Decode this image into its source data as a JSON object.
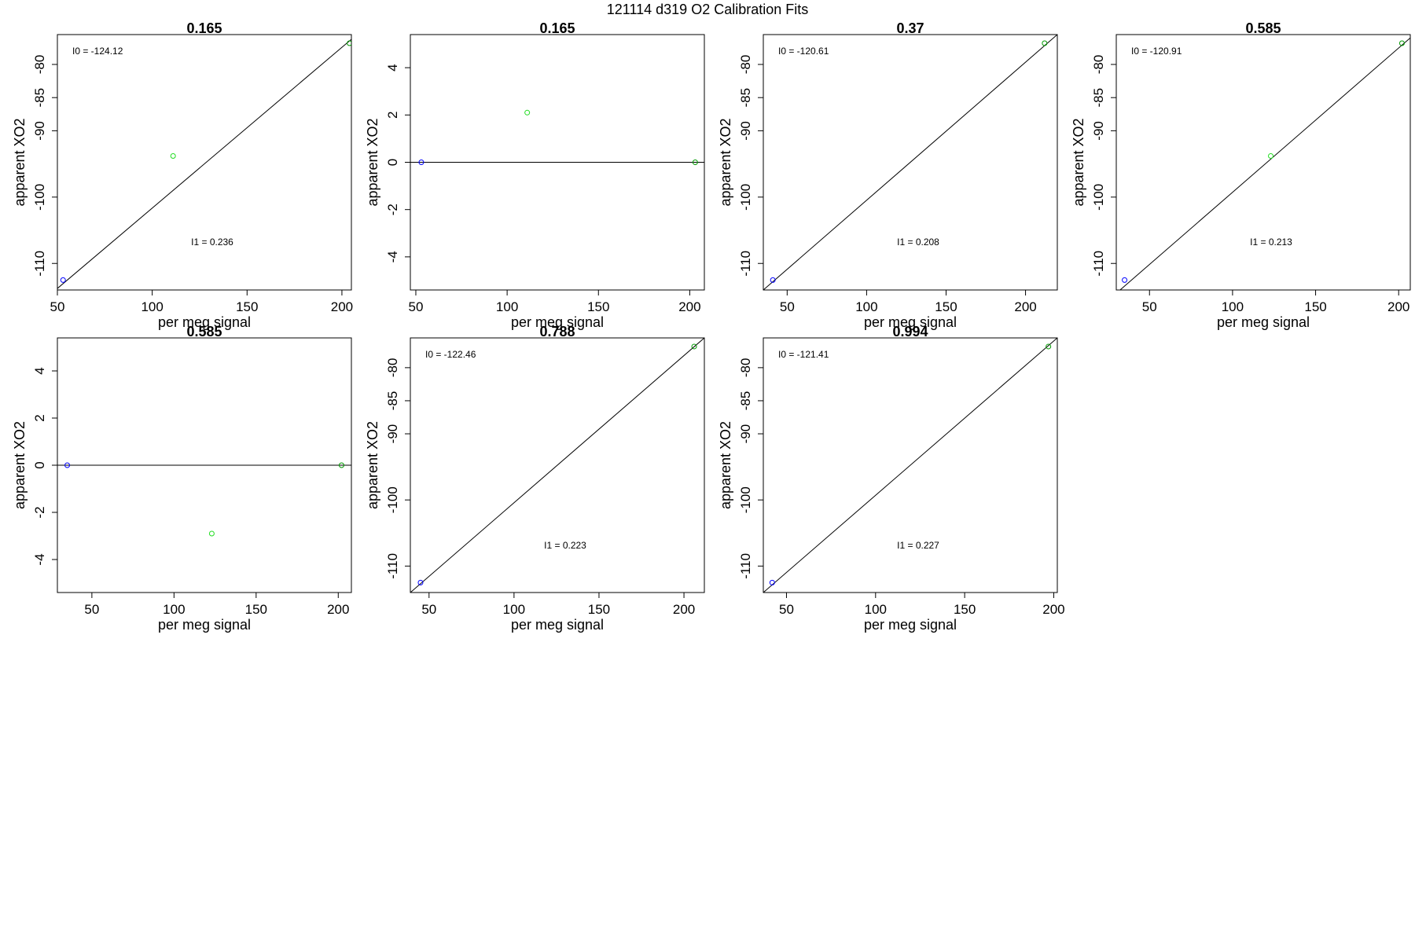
{
  "figure_title": "121114   d319   O2 Calibration Fits",
  "chart_data": [
    {
      "type": "scatter",
      "title": "0.165",
      "xlabel": "per meg signal",
      "ylabel": "apparent XO2",
      "xlim": [
        50,
        205
      ],
      "ylim": [
        -114,
        -75.5
      ],
      "xticks": [
        50,
        100,
        150,
        200
      ],
      "yticks": [
        -110,
        -100,
        -90,
        -85,
        -80
      ],
      "points": [
        {
          "x": 53,
          "y": -112.5,
          "color": "#0000ff"
        },
        {
          "x": 111,
          "y": -93.8,
          "color": "#22dd22"
        },
        {
          "x": 204,
          "y": -76.8,
          "color": "#009900"
        }
      ],
      "fit_line": [
        [
          47,
          -114.5
        ],
        [
          210,
          -75
        ]
      ],
      "annotations": {
        "i0": "I0 =  -124.12",
        "i1": "I1 =  0.236"
      }
    },
    {
      "type": "scatter",
      "title": "0.165",
      "xlabel": "per meg signal",
      "ylabel": "apparent XO2",
      "xlim": [
        47,
        208
      ],
      "ylim": [
        -5.4,
        5.4
      ],
      "xticks": [
        50,
        100,
        150,
        200
      ],
      "yticks": [
        -4,
        -2,
        0,
        2,
        4
      ],
      "points": [
        {
          "x": 53,
          "y": 0,
          "color": "#0000ff"
        },
        {
          "x": 111,
          "y": 2.1,
          "color": "#22dd22"
        },
        {
          "x": 203,
          "y": 0,
          "color": "#009900"
        }
      ],
      "fit_line": [
        [
          47,
          0
        ],
        [
          208,
          0
        ]
      ],
      "annotations": {
        "i0": "",
        "i1": ""
      }
    },
    {
      "type": "scatter",
      "title": "0.37",
      "xlabel": "per meg signal",
      "ylabel": "apparent XO2",
      "xlim": [
        35,
        220
      ],
      "ylim": [
        -114,
        -75.5
      ],
      "xticks": [
        50,
        100,
        150,
        200
      ],
      "yticks": [
        -110,
        -100,
        -90,
        -85,
        -80
      ],
      "points": [
        {
          "x": 41,
          "y": -112.5,
          "color": "#0000ff"
        },
        {
          "x": 212,
          "y": -76.8,
          "color": "#009900"
        }
      ],
      "fit_line": [
        [
          35,
          -114
        ],
        [
          220,
          -75.5
        ]
      ],
      "annotations": {
        "i0": "I0 =  -120.61",
        "i1": "I1 =  0.208"
      }
    },
    {
      "type": "scatter",
      "title": "0.585",
      "xlabel": "per meg signal",
      "ylabel": "apparent XO2",
      "xlim": [
        30,
        207
      ],
      "ylim": [
        -114,
        -75.5
      ],
      "xticks": [
        50,
        100,
        150,
        200
      ],
      "yticks": [
        -110,
        -100,
        -90,
        -85,
        -80
      ],
      "points": [
        {
          "x": 35,
          "y": -112.5,
          "color": "#0000ff"
        },
        {
          "x": 123,
          "y": -93.8,
          "color": "#22dd22"
        },
        {
          "x": 202,
          "y": -76.8,
          "color": "#009900"
        }
      ],
      "fit_line": [
        [
          30,
          -114.5
        ],
        [
          207,
          -76
        ]
      ],
      "annotations": {
        "i0": "I0 =  -120.91",
        "i1": "I1 =  0.213"
      }
    },
    {
      "type": "scatter",
      "title": "0.585",
      "xlabel": "per meg signal",
      "ylabel": "apparent XO2",
      "xlim": [
        29,
        208
      ],
      "ylim": [
        -5.4,
        5.4
      ],
      "xticks": [
        50,
        100,
        150,
        200
      ],
      "yticks": [
        -4,
        -2,
        0,
        2,
        4
      ],
      "points": [
        {
          "x": 35,
          "y": 0,
          "color": "#0000ff"
        },
        {
          "x": 123,
          "y": -2.9,
          "color": "#22dd22"
        },
        {
          "x": 202,
          "y": 0,
          "color": "#009900"
        }
      ],
      "fit_line": [
        [
          29,
          0
        ],
        [
          208,
          0
        ]
      ],
      "annotations": {
        "i0": "",
        "i1": ""
      }
    },
    {
      "type": "scatter",
      "title": "0.788",
      "xlabel": "per meg signal",
      "ylabel": "apparent XO2",
      "xlim": [
        39,
        212
      ],
      "ylim": [
        -114,
        -75.5
      ],
      "xticks": [
        50,
        100,
        150,
        200
      ],
      "yticks": [
        -110,
        -100,
        -90,
        -85,
        -80
      ],
      "points": [
        {
          "x": 45,
          "y": -112.5,
          "color": "#0000ff"
        },
        {
          "x": 206,
          "y": -76.8,
          "color": "#009900"
        }
      ],
      "fit_line": [
        [
          39,
          -114
        ],
        [
          212,
          -75.5
        ]
      ],
      "annotations": {
        "i0": "I0 =  -122.46",
        "i1": "I1 =  0.223"
      }
    },
    {
      "type": "scatter",
      "title": "0.994",
      "xlabel": "per meg signal",
      "ylabel": "apparent XO2",
      "xlim": [
        37,
        202
      ],
      "ylim": [
        -114,
        -75.5
      ],
      "xticks": [
        50,
        100,
        150,
        200
      ],
      "yticks": [
        -110,
        -100,
        -90,
        -85,
        -80
      ],
      "points": [
        {
          "x": 42,
          "y": -112.5,
          "color": "#0000ff"
        },
        {
          "x": 197,
          "y": -76.8,
          "color": "#009900"
        }
      ],
      "fit_line": [
        [
          37,
          -114
        ],
        [
          202,
          -75.5
        ]
      ],
      "annotations": {
        "i0": "I0 =  -121.41",
        "i1": "I1 =  0.227"
      }
    }
  ]
}
